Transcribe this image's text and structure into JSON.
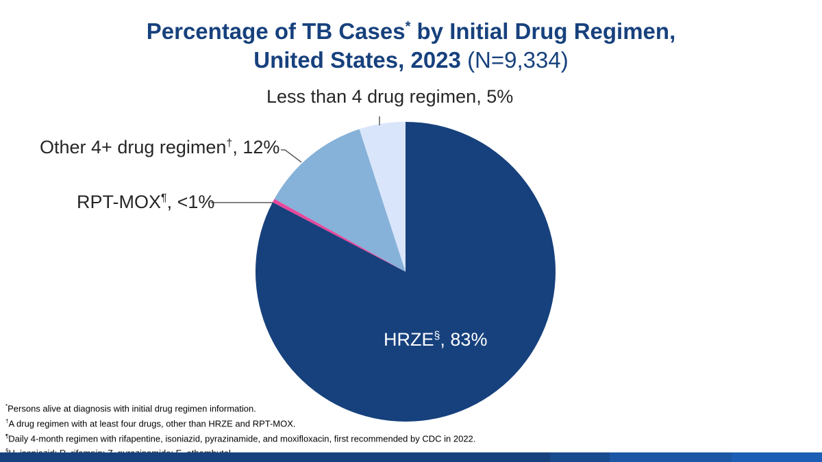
{
  "title": {
    "line1_a": "Percentage of TB Cases",
    "line1_sup": "*",
    "line1_b": " by Initial Drug Regimen,",
    "line2": "United States, 2023",
    "n": "(N=9,334)"
  },
  "chart_data": {
    "type": "pie",
    "start": "top",
    "direction": "clockwise",
    "slices": [
      {
        "name": "HRZE",
        "sup": "§",
        "label": ", 83%",
        "value": 83,
        "color": "#17417d"
      },
      {
        "name": "RPT-MOX",
        "sup": "¶",
        "label": ", <1%",
        "value": 0.4,
        "color": "#e8479b"
      },
      {
        "name": "Other 4+ drug regimen",
        "sup": "†",
        "label": ", 12%",
        "value": 12,
        "color": "#86b1d9"
      },
      {
        "name": "Less than 4 drug regimen",
        "sup": "",
        "label": ", 5%",
        "value": 5,
        "color": "#d9e5fa"
      }
    ]
  },
  "footnotes": [
    {
      "mark": "*",
      "text": "Persons alive at diagnosis with initial drug regimen information."
    },
    {
      "mark": "†",
      "text": "A drug regimen with at least four drugs, other than HRZE and RPT-MOX."
    },
    {
      "mark": "¶",
      "text": "Daily 4-month regimen with rifapentine, isoniazid, pyrazinamide, and moxifloxacin, first recommended by CDC in 2022."
    },
    {
      "mark": "§",
      "text": "H, isoniazid; R, rifampin; Z, pyrazinamide; E, ethambutol."
    }
  ],
  "footer_bar_colors": [
    "#17417d",
    "#1a4a8e",
    "#1b57a5",
    "#1c5eb5"
  ]
}
